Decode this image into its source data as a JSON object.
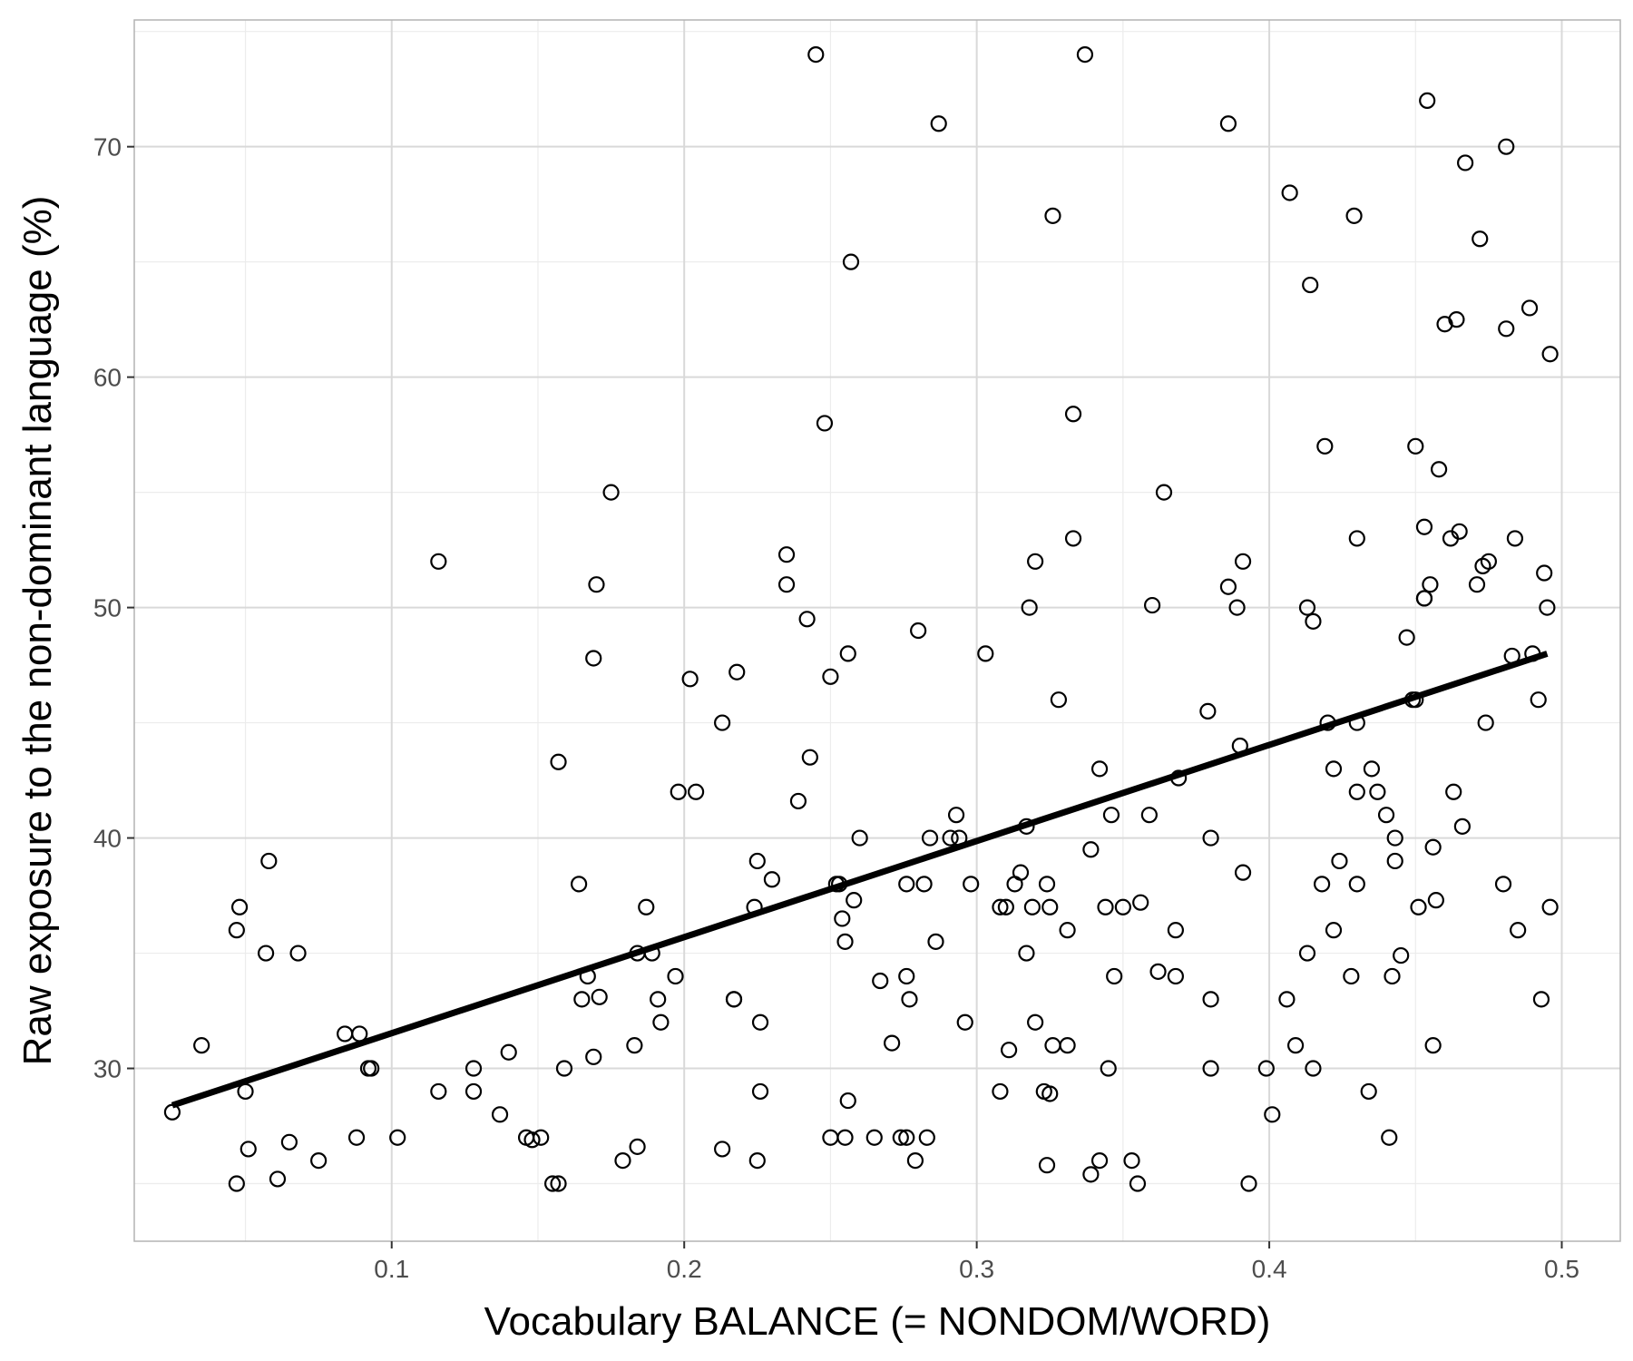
{
  "chart_data": {
    "type": "scatter",
    "title": "",
    "xlabel": "Vocabulary BALANCE (= NONDOM/WORD)",
    "ylabel": "Raw exposure to the non-dominant language (%)",
    "xlim": [
      0.012,
      0.52
    ],
    "ylim": [
      22.5,
      75.5
    ],
    "x_ticks": [
      0.1,
      0.2,
      0.3,
      0.4,
      0.5
    ],
    "x_tick_labels": [
      "0.1",
      "0.2",
      "0.3",
      "0.4",
      "0.5"
    ],
    "y_ticks": [
      30,
      40,
      50,
      60,
      70
    ],
    "y_tick_labels": [
      "30",
      "40",
      "50",
      "60",
      "70"
    ],
    "grid": true,
    "legend": "none",
    "colors": {
      "points": "#000000",
      "fit_line": "#000000",
      "grid_major": "#d9d9d9",
      "grid_minor": "#ececec",
      "panel_border": "#b3b3b3"
    },
    "fit_line": {
      "x": [
        0.025,
        0.495
      ],
      "y": [
        28.4,
        48.0
      ]
    },
    "points": [
      [
        0.025,
        28.1
      ],
      [
        0.035,
        31.0
      ],
      [
        0.047,
        36.0
      ],
      [
        0.047,
        25.0
      ],
      [
        0.048,
        37.0
      ],
      [
        0.05,
        29.0
      ],
      [
        0.051,
        26.5
      ],
      [
        0.057,
        35.0
      ],
      [
        0.058,
        39.0
      ],
      [
        0.061,
        25.2
      ],
      [
        0.065,
        26.8
      ],
      [
        0.068,
        35.0
      ],
      [
        0.075,
        26.0
      ],
      [
        0.084,
        31.5
      ],
      [
        0.088,
        27.0
      ],
      [
        0.089,
        31.5
      ],
      [
        0.092,
        30.0
      ],
      [
        0.093,
        30.0
      ],
      [
        0.102,
        27.0
      ],
      [
        0.116,
        29.0
      ],
      [
        0.116,
        52.0
      ],
      [
        0.128,
        30.0
      ],
      [
        0.128,
        29.0
      ],
      [
        0.137,
        28.0
      ],
      [
        0.14,
        30.7
      ],
      [
        0.146,
        27.0
      ],
      [
        0.148,
        26.9
      ],
      [
        0.151,
        27.0
      ],
      [
        0.155,
        25.0
      ],
      [
        0.157,
        25.0
      ],
      [
        0.157,
        43.3
      ],
      [
        0.159,
        30.0
      ],
      [
        0.164,
        38.0
      ],
      [
        0.165,
        33.0
      ],
      [
        0.167,
        34.0
      ],
      [
        0.169,
        30.5
      ],
      [
        0.169,
        47.8
      ],
      [
        0.17,
        51.0
      ],
      [
        0.171,
        33.1
      ],
      [
        0.175,
        55.0
      ],
      [
        0.179,
        26.0
      ],
      [
        0.183,
        31.0
      ],
      [
        0.184,
        35.0
      ],
      [
        0.184,
        26.6
      ],
      [
        0.187,
        37.0
      ],
      [
        0.189,
        35.0
      ],
      [
        0.191,
        33.0
      ],
      [
        0.192,
        32.0
      ],
      [
        0.197,
        34.0
      ],
      [
        0.198,
        42.0
      ],
      [
        0.202,
        46.9
      ],
      [
        0.204,
        42.0
      ],
      [
        0.213,
        26.5
      ],
      [
        0.213,
        45.0
      ],
      [
        0.217,
        33.0
      ],
      [
        0.217,
        33.0
      ],
      [
        0.218,
        47.2
      ],
      [
        0.224,
        37.0
      ],
      [
        0.225,
        39.0
      ],
      [
        0.225,
        26.0
      ],
      [
        0.226,
        32.0
      ],
      [
        0.226,
        29.0
      ],
      [
        0.23,
        38.2
      ],
      [
        0.235,
        52.3
      ],
      [
        0.235,
        51.0
      ],
      [
        0.239,
        41.6
      ],
      [
        0.242,
        49.5
      ],
      [
        0.243,
        43.5
      ],
      [
        0.245,
        74.0
      ],
      [
        0.248,
        58.0
      ],
      [
        0.25,
        47.0
      ],
      [
        0.25,
        27.0
      ],
      [
        0.252,
        38.0
      ],
      [
        0.253,
        38.0
      ],
      [
        0.255,
        27.0
      ],
      [
        0.254,
        36.5
      ],
      [
        0.255,
        35.5
      ],
      [
        0.256,
        28.6
      ],
      [
        0.256,
        48.0
      ],
      [
        0.257,
        65.0
      ],
      [
        0.258,
        37.3
      ],
      [
        0.26,
        40.0
      ],
      [
        0.265,
        27.0
      ],
      [
        0.267,
        33.8
      ],
      [
        0.271,
        31.1
      ],
      [
        0.274,
        27.0
      ],
      [
        0.276,
        27.0
      ],
      [
        0.276,
        34.0
      ],
      [
        0.276,
        38.0
      ],
      [
        0.277,
        33.0
      ],
      [
        0.279,
        26.0
      ],
      [
        0.28,
        49.0
      ],
      [
        0.282,
        38.0
      ],
      [
        0.283,
        27.0
      ],
      [
        0.284,
        40.0
      ],
      [
        0.286,
        35.5
      ],
      [
        0.287,
        71.0
      ],
      [
        0.291,
        40.0
      ],
      [
        0.293,
        41.0
      ],
      [
        0.294,
        40.0
      ],
      [
        0.296,
        32.0
      ],
      [
        0.298,
        38.0
      ],
      [
        0.303,
        48.0
      ],
      [
        0.308,
        29.0
      ],
      [
        0.308,
        37.0
      ],
      [
        0.31,
        37.0
      ],
      [
        0.311,
        30.8
      ],
      [
        0.313,
        38.0
      ],
      [
        0.315,
        38.5
      ],
      [
        0.317,
        40.5
      ],
      [
        0.317,
        35.0
      ],
      [
        0.318,
        50.0
      ],
      [
        0.319,
        37.0
      ],
      [
        0.32,
        52.0
      ],
      [
        0.32,
        32.0
      ],
      [
        0.323,
        29.0
      ],
      [
        0.324,
        38.0
      ],
      [
        0.324,
        25.8
      ],
      [
        0.325,
        37.0
      ],
      [
        0.325,
        28.9
      ],
      [
        0.326,
        31.0
      ],
      [
        0.326,
        67.0
      ],
      [
        0.328,
        46.0
      ],
      [
        0.331,
        31.0
      ],
      [
        0.331,
        36.0
      ],
      [
        0.333,
        58.4
      ],
      [
        0.333,
        53.0
      ],
      [
        0.337,
        74.0
      ],
      [
        0.339,
        25.4
      ],
      [
        0.339,
        39.5
      ],
      [
        0.342,
        26.0
      ],
      [
        0.342,
        43.0
      ],
      [
        0.344,
        37.0
      ],
      [
        0.345,
        30.0
      ],
      [
        0.346,
        41.0
      ],
      [
        0.347,
        34.0
      ],
      [
        0.35,
        37.0
      ],
      [
        0.353,
        26.0
      ],
      [
        0.355,
        25.0
      ],
      [
        0.356,
        37.2
      ],
      [
        0.359,
        41.0
      ],
      [
        0.36,
        50.1
      ],
      [
        0.362,
        34.2
      ],
      [
        0.364,
        55.0
      ],
      [
        0.368,
        34.0
      ],
      [
        0.368,
        36.0
      ],
      [
        0.369,
        42.6
      ],
      [
        0.379,
        45.5
      ],
      [
        0.38,
        33.0
      ],
      [
        0.38,
        30.0
      ],
      [
        0.38,
        40.0
      ],
      [
        0.386,
        50.9
      ],
      [
        0.386,
        71.0
      ],
      [
        0.389,
        50.0
      ],
      [
        0.39,
        44.0
      ],
      [
        0.391,
        38.5
      ],
      [
        0.391,
        52.0
      ],
      [
        0.393,
        25.0
      ],
      [
        0.399,
        30.0
      ],
      [
        0.401,
        28.0
      ],
      [
        0.406,
        33.0
      ],
      [
        0.407,
        68.0
      ],
      [
        0.409,
        31.0
      ],
      [
        0.413,
        50.0
      ],
      [
        0.413,
        35.0
      ],
      [
        0.414,
        64.0
      ],
      [
        0.415,
        49.4
      ],
      [
        0.415,
        30.0
      ],
      [
        0.418,
        38.0
      ],
      [
        0.419,
        57.0
      ],
      [
        0.42,
        45.0
      ],
      [
        0.422,
        43.0
      ],
      [
        0.422,
        36.0
      ],
      [
        0.424,
        39.0
      ],
      [
        0.428,
        34.0
      ],
      [
        0.429,
        67.0
      ],
      [
        0.43,
        42.0
      ],
      [
        0.43,
        38.0
      ],
      [
        0.43,
        53.0
      ],
      [
        0.43,
        45.0
      ],
      [
        0.434,
        29.0
      ],
      [
        0.435,
        43.0
      ],
      [
        0.437,
        42.0
      ],
      [
        0.44,
        41.0
      ],
      [
        0.441,
        27.0
      ],
      [
        0.442,
        34.0
      ],
      [
        0.443,
        39.0
      ],
      [
        0.443,
        40.0
      ],
      [
        0.445,
        34.9
      ],
      [
        0.447,
        48.7
      ],
      [
        0.449,
        46.0
      ],
      [
        0.45,
        57.0
      ],
      [
        0.45,
        46.0
      ],
      [
        0.451,
        37.0
      ],
      [
        0.453,
        53.5
      ],
      [
        0.453,
        50.4
      ],
      [
        0.453,
        50.4
      ],
      [
        0.454,
        72.0
      ],
      [
        0.455,
        51.0
      ],
      [
        0.456,
        31.0
      ],
      [
        0.456,
        39.6
      ],
      [
        0.457,
        37.3
      ],
      [
        0.458,
        56.0
      ],
      [
        0.46,
        62.3
      ],
      [
        0.462,
        53.0
      ],
      [
        0.463,
        42.0
      ],
      [
        0.464,
        62.5
      ],
      [
        0.465,
        53.3
      ],
      [
        0.466,
        40.5
      ],
      [
        0.467,
        69.3
      ],
      [
        0.471,
        51.0
      ],
      [
        0.472,
        66.0
      ],
      [
        0.473,
        51.8
      ],
      [
        0.474,
        45.0
      ],
      [
        0.475,
        52.0
      ],
      [
        0.48,
        38.0
      ],
      [
        0.481,
        70.0
      ],
      [
        0.481,
        62.1
      ],
      [
        0.483,
        47.9
      ],
      [
        0.484,
        53.0
      ],
      [
        0.485,
        36.0
      ],
      [
        0.489,
        63.0
      ],
      [
        0.49,
        48.0
      ],
      [
        0.492,
        46.0
      ],
      [
        0.493,
        33.0
      ],
      [
        0.494,
        51.5
      ],
      [
        0.495,
        50.0
      ],
      [
        0.496,
        61.0
      ],
      [
        0.496,
        37.0
      ]
    ]
  }
}
